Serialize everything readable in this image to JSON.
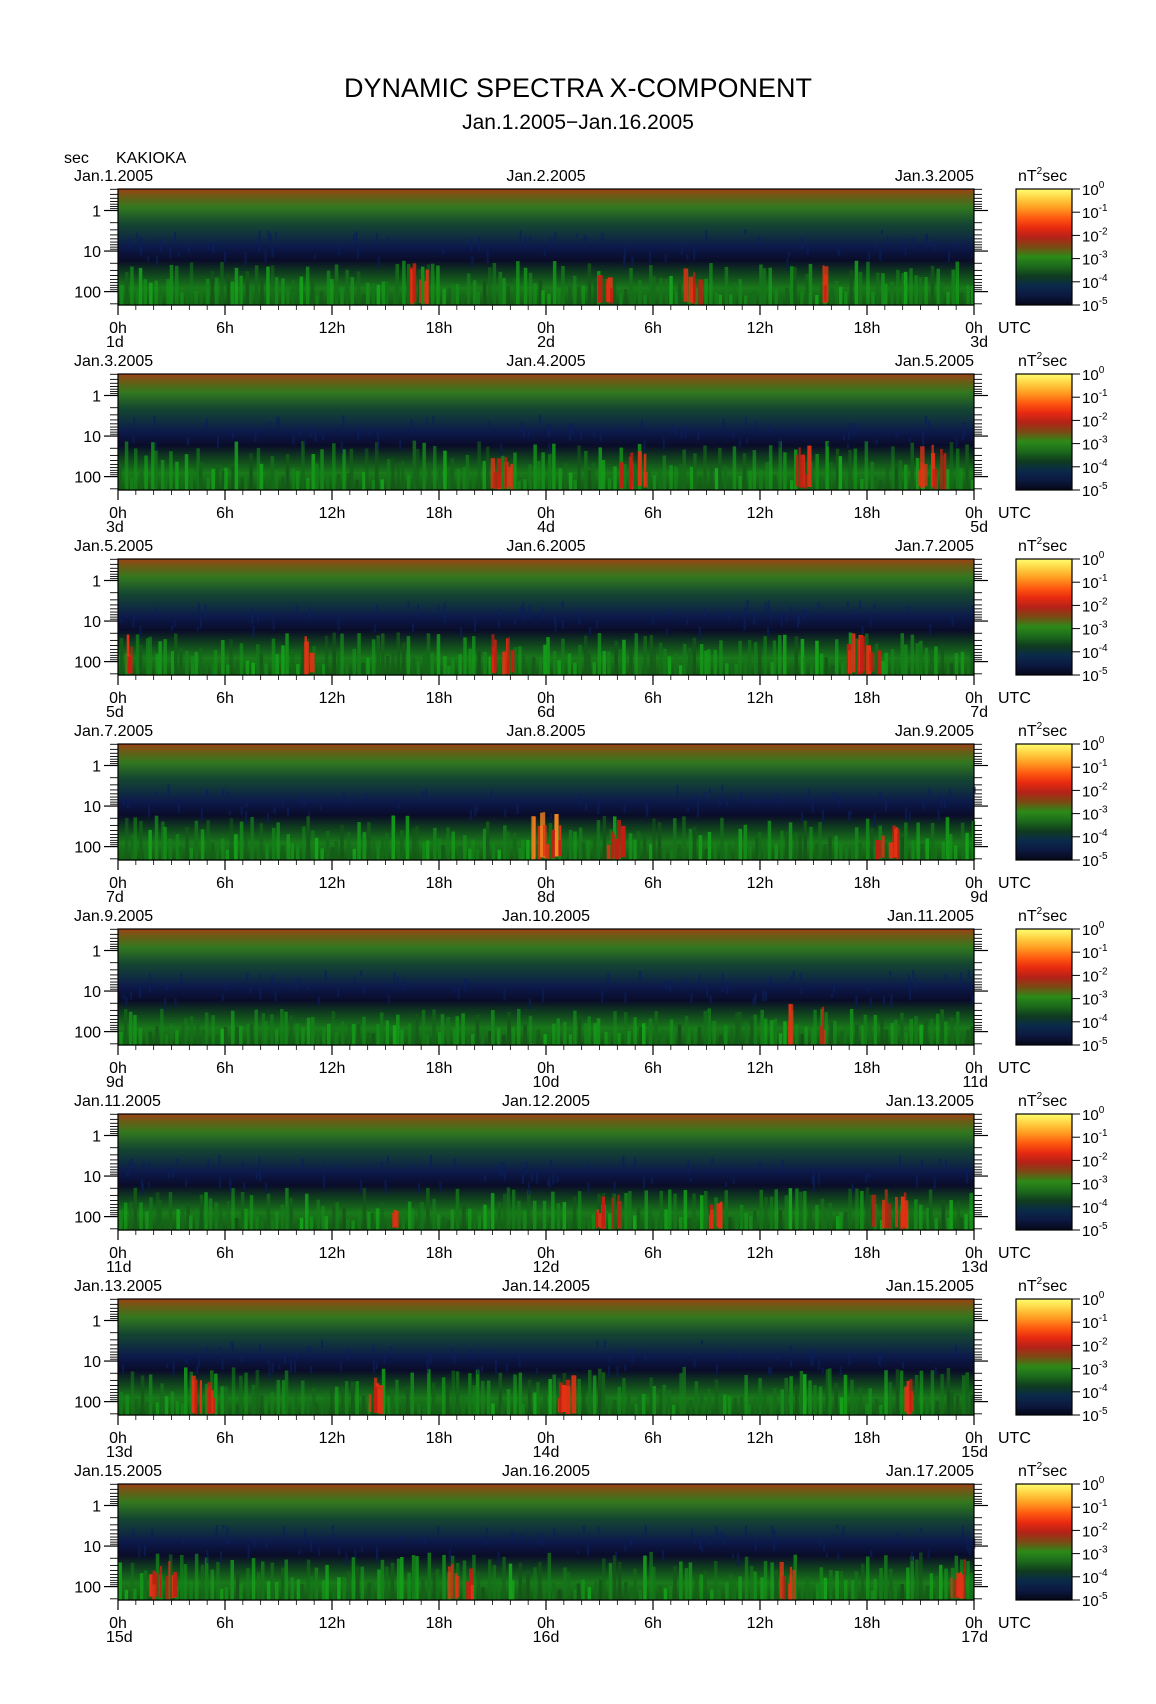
{
  "title": "DYNAMIC SPECTRA X-COMPONENT",
  "subtitle": "Jan.1.2005−Jan.16.2005",
  "station": "KAKIOKA",
  "y_unit": "sec",
  "x_unit": "UTC",
  "colorbar_unit": "nT",
  "colorbar_unit_exp": "2",
  "colorbar_unit_suffix": "sec",
  "chart_data": {
    "type": "heatmap",
    "x_axis": {
      "ticks": [
        "0h",
        "6h",
        "12h",
        "18h",
        "0h",
        "6h",
        "12h",
        "18h",
        "0h"
      ]
    },
    "y_axis": {
      "label": "sec",
      "scale": "log",
      "ticks": [
        "1",
        "10",
        "100"
      ]
    },
    "colorbar": {
      "scale": "log",
      "ticks": [
        {
          "base": "10",
          "exp": "0"
        },
        {
          "base": "10",
          "exp": "-1"
        },
        {
          "base": "10",
          "exp": "-2"
        },
        {
          "base": "10",
          "exp": "-3"
        },
        {
          "base": "10",
          "exp": "-4"
        },
        {
          "base": "10",
          "exp": "-5"
        }
      ],
      "colors": [
        "#ffff70",
        "#ffcf40",
        "#ff9a20",
        "#ff5a10",
        "#e82a10",
        "#b42218",
        "#7a4a14",
        "#2c8a18",
        "#1c6a1c",
        "#0f3c1e",
        "#0a2a4a",
        "#0c1840",
        "#060818"
      ]
    },
    "panels": [
      {
        "dates": [
          "Jan.1.2005",
          "Jan.2.2005",
          "Jan.3.2005"
        ],
        "days": [
          "1d",
          "2d",
          "3d"
        ],
        "activity": 0.45,
        "bursts": [
          {
            "at": 0.35,
            "w": 0.02,
            "i": 0.8
          },
          {
            "at": 0.57,
            "w": 0.02,
            "i": 0.7
          },
          {
            "at": 0.67,
            "w": 0.02,
            "i": 0.7
          },
          {
            "at": 0.83,
            "w": 0.015,
            "i": 0.8
          }
        ]
      },
      {
        "dates": [
          "Jan.3.2005",
          "Jan.4.2005",
          "Jan.5.2005"
        ],
        "days": [
          "3d",
          "4d",
          "5d"
        ],
        "activity": 0.6,
        "bursts": [
          {
            "at": 0.45,
            "w": 0.03,
            "i": 0.8
          },
          {
            "at": 0.6,
            "w": 0.03,
            "i": 0.75
          },
          {
            "at": 0.8,
            "w": 0.02,
            "i": 0.85
          },
          {
            "at": 0.95,
            "w": 0.03,
            "i": 0.9
          }
        ]
      },
      {
        "dates": [
          "Jan.5.2005",
          "Jan.6.2005",
          "Jan.7.2005"
        ],
        "days": [
          "5d",
          "6d",
          "7d"
        ],
        "activity": 0.4,
        "bursts": [
          {
            "at": 0.01,
            "w": 0.015,
            "i": 0.8
          },
          {
            "at": 0.22,
            "w": 0.01,
            "i": 0.8
          },
          {
            "at": 0.45,
            "w": 0.04,
            "i": 0.75
          },
          {
            "at": 0.87,
            "w": 0.04,
            "i": 0.8
          }
        ]
      },
      {
        "dates": [
          "Jan.7.2005",
          "Jan.8.2005",
          "Jan.9.2005"
        ],
        "days": [
          "7d",
          "8d",
          "9d"
        ],
        "activity": 0.45,
        "bursts": [
          {
            "at": 0.5,
            "w": 0.04,
            "i": 1.0
          },
          {
            "at": 0.58,
            "w": 0.02,
            "i": 0.8
          },
          {
            "at": 0.9,
            "w": 0.03,
            "i": 0.65
          }
        ]
      },
      {
        "dates": [
          "Jan.9.2005",
          "Jan.10.2005",
          "Jan.11.2005"
        ],
        "days": [
          "9d",
          "10d",
          "11d"
        ],
        "activity": 0.25,
        "bursts": [
          {
            "at": 0.78,
            "w": 0.01,
            "i": 0.85
          },
          {
            "at": 0.82,
            "w": 0.01,
            "i": 0.9
          }
        ]
      },
      {
        "dates": [
          "Jan.11.2005",
          "Jan.12.2005",
          "Jan.13.2005"
        ],
        "days": [
          "11d",
          "12d",
          "13d"
        ],
        "activity": 0.4,
        "bursts": [
          {
            "at": 0.32,
            "w": 0.01,
            "i": 0.7
          },
          {
            "at": 0.57,
            "w": 0.03,
            "i": 0.6
          },
          {
            "at": 0.7,
            "w": 0.02,
            "i": 0.7
          },
          {
            "at": 0.9,
            "w": 0.04,
            "i": 0.8
          }
        ]
      },
      {
        "dates": [
          "Jan.13.2005",
          "Jan.14.2005",
          "Jan.15.2005"
        ],
        "days": [
          "13d",
          "14d",
          "15d"
        ],
        "activity": 0.55,
        "bursts": [
          {
            "at": 0.1,
            "w": 0.03,
            "i": 0.75
          },
          {
            "at": 0.3,
            "w": 0.02,
            "i": 0.7
          },
          {
            "at": 0.52,
            "w": 0.02,
            "i": 0.8
          },
          {
            "at": 0.92,
            "w": 0.02,
            "i": 0.6
          }
        ]
      },
      {
        "dates": [
          "Jan.15.2005",
          "Jan.16.2005",
          "Jan.17.2005"
        ],
        "days": [
          "15d",
          "16d",
          "17d"
        ],
        "activity": 0.55,
        "bursts": [
          {
            "at": 0.05,
            "w": 0.03,
            "i": 0.8
          },
          {
            "at": 0.4,
            "w": 0.03,
            "i": 0.7
          },
          {
            "at": 0.78,
            "w": 0.02,
            "i": 0.7
          },
          {
            "at": 0.98,
            "w": 0.02,
            "i": 0.8
          }
        ]
      }
    ]
  }
}
